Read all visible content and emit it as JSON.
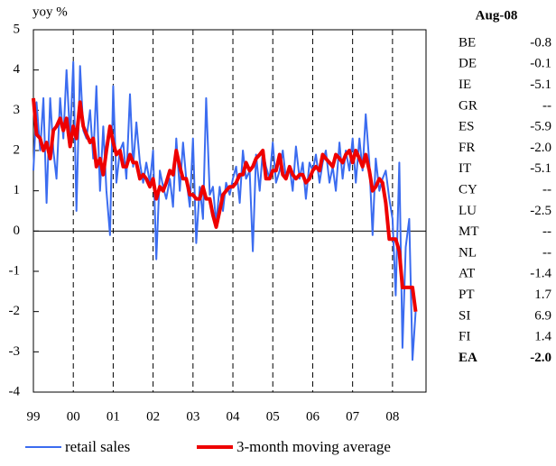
{
  "chart_data": {
    "type": "line",
    "y_label": "yoy %",
    "x": [
      1999,
      1999.08,
      1999.17,
      1999.25,
      1999.33,
      1999.42,
      1999.5,
      1999.58,
      1999.67,
      1999.75,
      1999.83,
      1999.92,
      2000,
      2000.08,
      2000.17,
      2000.25,
      2000.33,
      2000.42,
      2000.5,
      2000.58,
      2000.67,
      2000.75,
      2000.83,
      2000.92,
      2001,
      2001.08,
      2001.17,
      2001.25,
      2001.33,
      2001.42,
      2001.5,
      2001.58,
      2001.67,
      2001.75,
      2001.83,
      2001.92,
      2002,
      2002.08,
      2002.17,
      2002.25,
      2002.33,
      2002.42,
      2002.5,
      2002.58,
      2002.67,
      2002.75,
      2002.83,
      2002.92,
      2003,
      2003.08,
      2003.17,
      2003.25,
      2003.33,
      2003.42,
      2003.5,
      2003.58,
      2003.67,
      2003.75,
      2003.83,
      2003.92,
      2004,
      2004.08,
      2004.17,
      2004.25,
      2004.33,
      2004.42,
      2004.5,
      2004.58,
      2004.67,
      2004.75,
      2004.83,
      2004.92,
      2005,
      2005.08,
      2005.17,
      2005.25,
      2005.33,
      2005.42,
      2005.5,
      2005.58,
      2005.67,
      2005.75,
      2005.83,
      2005.92,
      2006,
      2006.08,
      2006.17,
      2006.25,
      2006.33,
      2006.42,
      2006.5,
      2006.58,
      2006.67,
      2006.75,
      2006.83,
      2006.92,
      2007,
      2007.08,
      2007.17,
      2007.25,
      2007.33,
      2007.42,
      2007.5,
      2007.58,
      2007.67,
      2007.75,
      2007.83,
      2007.92,
      2008,
      2008.08,
      2008.17,
      2008.25,
      2008.33,
      2008.42,
      2008.5,
      2008.58
    ],
    "series": [
      {
        "name": "retail sales",
        "color": "#3b6cf0",
        "width": 2,
        "values": [
          1.5,
          3.2,
          2.0,
          3.3,
          0.7,
          3.3,
          2.0,
          1.3,
          3.3,
          2.3,
          4.0,
          2.3,
          4.2,
          0.5,
          4.1,
          2.5,
          2.3,
          3.0,
          1.8,
          3.6,
          1.0,
          2.6,
          1.0,
          -0.1,
          3.6,
          1.2,
          2.0,
          2.2,
          1.3,
          3.4,
          1.6,
          2.7,
          1.7,
          1.2,
          1.7,
          1.2,
          2.0,
          -0.7,
          1.5,
          1.1,
          0.8,
          1.3,
          0.6,
          2.3,
          1.0,
          2.2,
          1.3,
          0.6,
          2.3,
          -0.3,
          1.1,
          0.3,
          3.3,
          0.9,
          1.1,
          0.2,
          1.1,
          0.5,
          1.2,
          0.9,
          1.3,
          1.6,
          0.7,
          2.0,
          1.3,
          1.5,
          -0.5,
          1.9,
          1.0,
          2.0,
          1.6,
          1.3,
          2.2,
          1.2,
          1.5,
          2.0,
          1.3,
          1.6,
          1.0,
          2.1,
          1.3,
          1.7,
          0.8,
          1.7,
          1.5,
          1.9,
          1.2,
          1.7,
          2.0,
          1.2,
          1.6,
          1.0,
          2.2,
          1.3,
          2.0,
          1.5,
          2.3,
          1.2,
          2.3,
          1.5,
          2.9,
          1.7,
          -0.1,
          1.8,
          1.0,
          1.3,
          1.5,
          0.8,
          0.3,
          -1.6,
          1.7,
          -2.9,
          -0.4,
          0.3,
          -3.2,
          -2.0
        ]
      },
      {
        "name": "3-month moving average",
        "color": "#ee0000",
        "width": 4,
        "values": [
          3.3,
          2.4,
          2.3,
          2.0,
          2.2,
          1.8,
          2.5,
          2.6,
          2.8,
          2.5,
          2.8,
          2.1,
          2.6,
          2.3,
          3.2,
          2.6,
          2.4,
          2.2,
          2.3,
          1.6,
          1.8,
          1.4,
          2.0,
          2.6,
          2.2,
          1.9,
          2.0,
          1.6,
          1.6,
          1.9,
          1.7,
          1.7,
          1.3,
          1.4,
          1.3,
          1.1,
          1.3,
          0.8,
          1.1,
          1.0,
          1.2,
          1.5,
          1.4,
          2.0,
          1.6,
          1.3,
          1.3,
          0.9,
          0.9,
          0.8,
          0.8,
          1.1,
          0.8,
          0.8,
          0.4,
          0.1,
          0.5,
          0.9,
          1.0,
          1.1,
          1.1,
          1.2,
          1.4,
          1.4,
          1.7,
          1.5,
          1.6,
          1.8,
          1.9,
          2.0,
          1.3,
          1.3,
          1.5,
          1.5,
          1.9,
          1.4,
          1.3,
          1.6,
          1.4,
          1.3,
          1.4,
          1.4,
          1.2,
          1.3,
          1.5,
          1.6,
          1.5,
          1.9,
          1.8,
          1.7,
          1.6,
          1.9,
          1.8,
          1.7,
          1.9,
          2.0,
          1.7,
          2.0,
          1.8,
          1.6,
          1.9,
          1.5,
          1.0,
          1.1,
          1.3,
          1.2,
          0.7,
          -0.2,
          -0.2,
          -0.2,
          -0.5,
          -1.4,
          -1.4,
          -1.4,
          -1.4,
          -2.0
        ]
      }
    ],
    "xlim": [
      1999,
      2008.84
    ],
    "xticks": [
      {
        "value": 1999,
        "label": "99"
      },
      {
        "value": 2000,
        "label": "00"
      },
      {
        "value": 2001,
        "label": "01"
      },
      {
        "value": 2002,
        "label": "02"
      },
      {
        "value": 2003,
        "label": "03"
      },
      {
        "value": 2004,
        "label": "04"
      },
      {
        "value": 2005,
        "label": "05"
      },
      {
        "value": 2006,
        "label": "06"
      },
      {
        "value": 2007,
        "label": "07"
      },
      {
        "value": 2008,
        "label": "08"
      }
    ],
    "ylim": [
      -4,
      5
    ],
    "yticks": [
      -4,
      -3,
      -2,
      -1,
      0,
      1,
      2,
      3,
      4,
      5
    ],
    "x_grid": true,
    "legend": "bottom"
  },
  "table": {
    "title": "Aug-08",
    "rows": [
      [
        "BE",
        "-0.8"
      ],
      [
        "DE",
        "-0.1"
      ],
      [
        "IE",
        "-5.1"
      ],
      [
        "GR",
        "--"
      ],
      [
        "ES",
        "-5.9"
      ],
      [
        "FR",
        "-2.0"
      ],
      [
        "IT",
        "-5.1"
      ],
      [
        "CY",
        "--"
      ],
      [
        "LU",
        "-2.5"
      ],
      [
        "MT",
        "--"
      ],
      [
        "NL",
        "--"
      ],
      [
        "AT",
        "-1.4"
      ],
      [
        "PT",
        "1.7"
      ],
      [
        "SI",
        "6.9"
      ],
      [
        "FI",
        "1.4"
      ],
      [
        "EA",
        "-2.0"
      ]
    ],
    "highlight_color": "#3b6cf0"
  }
}
